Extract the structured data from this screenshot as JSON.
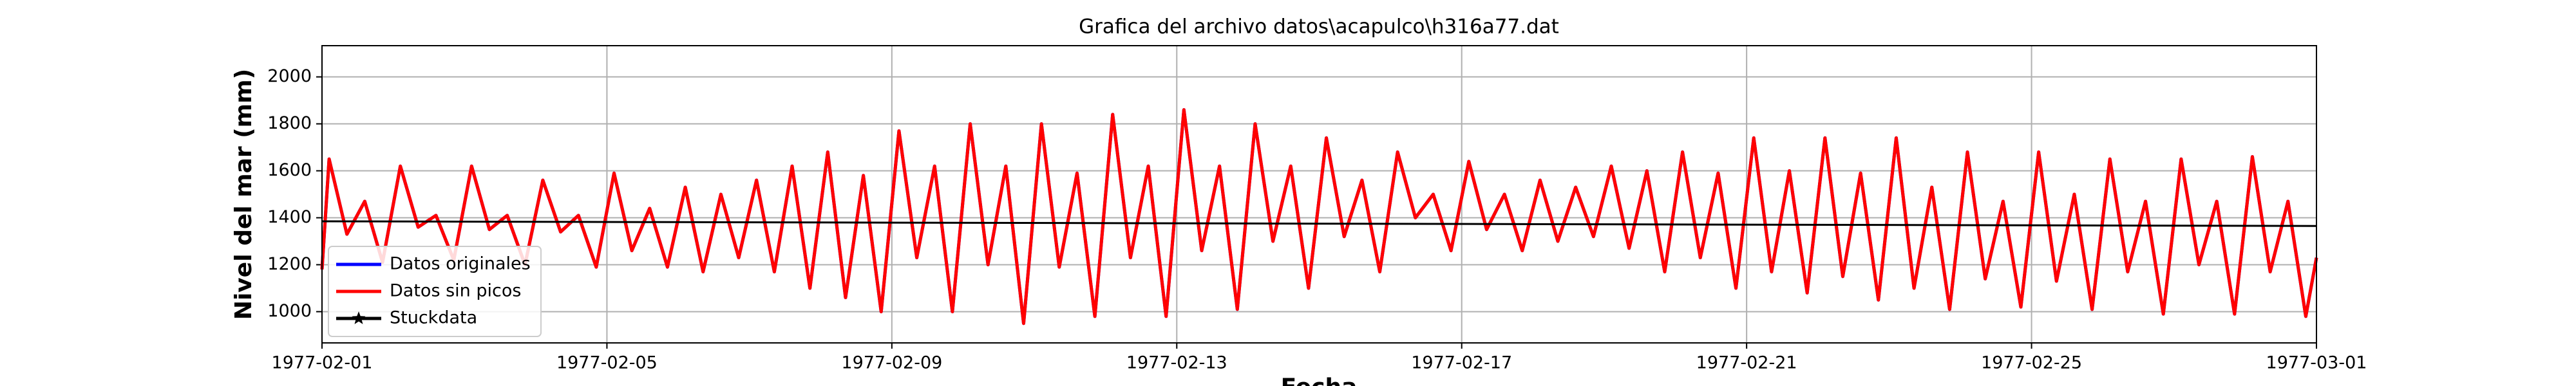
{
  "chart_data": {
    "type": "line",
    "title": "Grafica del archivo datos\\acapulco\\h316a77.dat",
    "xlabel": "Fecha",
    "ylabel": "Nivel del mar (mm)",
    "xlim": [
      0,
      28
    ],
    "xticks": [
      {
        "value": 0,
        "label": "1977-02-01"
      },
      {
        "value": 4,
        "label": "1977-02-05"
      },
      {
        "value": 8,
        "label": "1977-02-09"
      },
      {
        "value": 12,
        "label": "1977-02-13"
      },
      {
        "value": 16,
        "label": "1977-02-17"
      },
      {
        "value": 20,
        "label": "1977-02-21"
      },
      {
        "value": 24,
        "label": "1977-02-25"
      },
      {
        "value": 28,
        "label": "1977-03-01"
      }
    ],
    "ylim": [
      867,
      2133
    ],
    "yticks": [
      1000,
      1200,
      1400,
      1600,
      1800,
      2000
    ],
    "grid": true,
    "legend": "lower left",
    "x": [
      0,
      0.1,
      0.35,
      0.6,
      0.85,
      1.1,
      1.35,
      1.6,
      1.85,
      2.1,
      2.35,
      2.6,
      2.85,
      3.1,
      3.35,
      3.6,
      3.85,
      4.1,
      4.35,
      4.6,
      4.85,
      5.1,
      5.35,
      5.6,
      5.85,
      6.1,
      6.35,
      6.6,
      6.85,
      7.1,
      7.35,
      7.6,
      7.85,
      8.1,
      8.35,
      8.6,
      8.85,
      9.1,
      9.35,
      9.6,
      9.85,
      10.1,
      10.35,
      10.6,
      10.85,
      11.1,
      11.35,
      11.6,
      11.85,
      12.1,
      12.35,
      12.6,
      12.85,
      13.1,
      13.35,
      13.6,
      13.85,
      14.1,
      14.35,
      14.6,
      14.85,
      15.1,
      15.35,
      15.6,
      15.85,
      16.1,
      16.35,
      16.6,
      16.85,
      17.1,
      17.35,
      17.6,
      17.85,
      18.1,
      18.35,
      18.6,
      18.85,
      19.1,
      19.35,
      19.6,
      19.85,
      20.1,
      20.35,
      20.6,
      20.85,
      21.1,
      21.35,
      21.6,
      21.85,
      22.1,
      22.35,
      22.6,
      22.85,
      23.1,
      23.35,
      23.6,
      23.85,
      24.1,
      24.35,
      24.6,
      24.85,
      25.1,
      25.35,
      25.6,
      25.85,
      26.1,
      26.35,
      26.6,
      26.85,
      27.1,
      27.35,
      27.6,
      27.85,
      28
    ],
    "series": [
      {
        "name": "Datos originales",
        "color": "#0000ff",
        "values": [
          1180,
          1650,
          1330,
          1470,
          1210,
          1620,
          1360,
          1410,
          1220,
          1620,
          1350,
          1410,
          1200,
          1560,
          1340,
          1410,
          1190,
          1590,
          1260,
          1440,
          1190,
          1530,
          1170,
          1500,
          1230,
          1560,
          1170,
          1620,
          1100,
          1680,
          1060,
          1580,
          1000,
          1770,
          1230,
          1620,
          1000,
          1800,
          1200,
          1620,
          950,
          1800,
          1190,
          1590,
          980,
          1840,
          1230,
          1620,
          980,
          1860,
          1260,
          1620,
          1010,
          1800,
          1300,
          1620,
          1100,
          1740,
          1320,
          1560,
          1170,
          1680,
          1400,
          1500,
          1260,
          1640,
          1350,
          1500,
          1260,
          1560,
          1300,
          1530,
          1320,
          1620,
          1270,
          1600,
          1170,
          1680,
          1230,
          1590,
          1100,
          1740,
          1170,
          1600,
          1080,
          1740,
          1150,
          1590,
          1050,
          1740,
          1100,
          1530,
          1010,
          1680,
          1140,
          1470,
          1020,
          1680,
          1130,
          1500,
          1010,
          1650,
          1170,
          1470,
          990,
          1650,
          1200,
          1470,
          990,
          1660,
          1170,
          1470,
          980,
          1230
        ]
      },
      {
        "name": "Datos sin picos",
        "color": "#ff0000",
        "values": [
          1180,
          1650,
          1330,
          1470,
          1210,
          1620,
          1360,
          1410,
          1220,
          1620,
          1350,
          1410,
          1200,
          1560,
          1340,
          1410,
          1190,
          1590,
          1260,
          1440,
          1190,
          1530,
          1170,
          1500,
          1230,
          1560,
          1170,
          1620,
          1100,
          1680,
          1060,
          1580,
          1000,
          1770,
          1230,
          1620,
          1000,
          1800,
          1200,
          1620,
          950,
          1800,
          1190,
          1590,
          980,
          1840,
          1230,
          1620,
          980,
          1860,
          1260,
          1620,
          1010,
          1800,
          1300,
          1620,
          1100,
          1740,
          1320,
          1560,
          1170,
          1680,
          1400,
          1500,
          1260,
          1640,
          1350,
          1500,
          1260,
          1560,
          1300,
          1530,
          1320,
          1620,
          1270,
          1600,
          1170,
          1680,
          1230,
          1590,
          1100,
          1740,
          1170,
          1600,
          1080,
          1740,
          1150,
          1590,
          1050,
          1740,
          1100,
          1530,
          1010,
          1680,
          1140,
          1470,
          1020,
          1680,
          1130,
          1500,
          1010,
          1650,
          1170,
          1470,
          990,
          1650,
          1200,
          1470,
          990,
          1660,
          1170,
          1470,
          980,
          1230
        ]
      },
      {
        "name": "Stuckdata",
        "color": "#000000",
        "marker": "star",
        "x": [
          0,
          28
        ],
        "values": [
          1385,
          1365
        ]
      }
    ]
  }
}
